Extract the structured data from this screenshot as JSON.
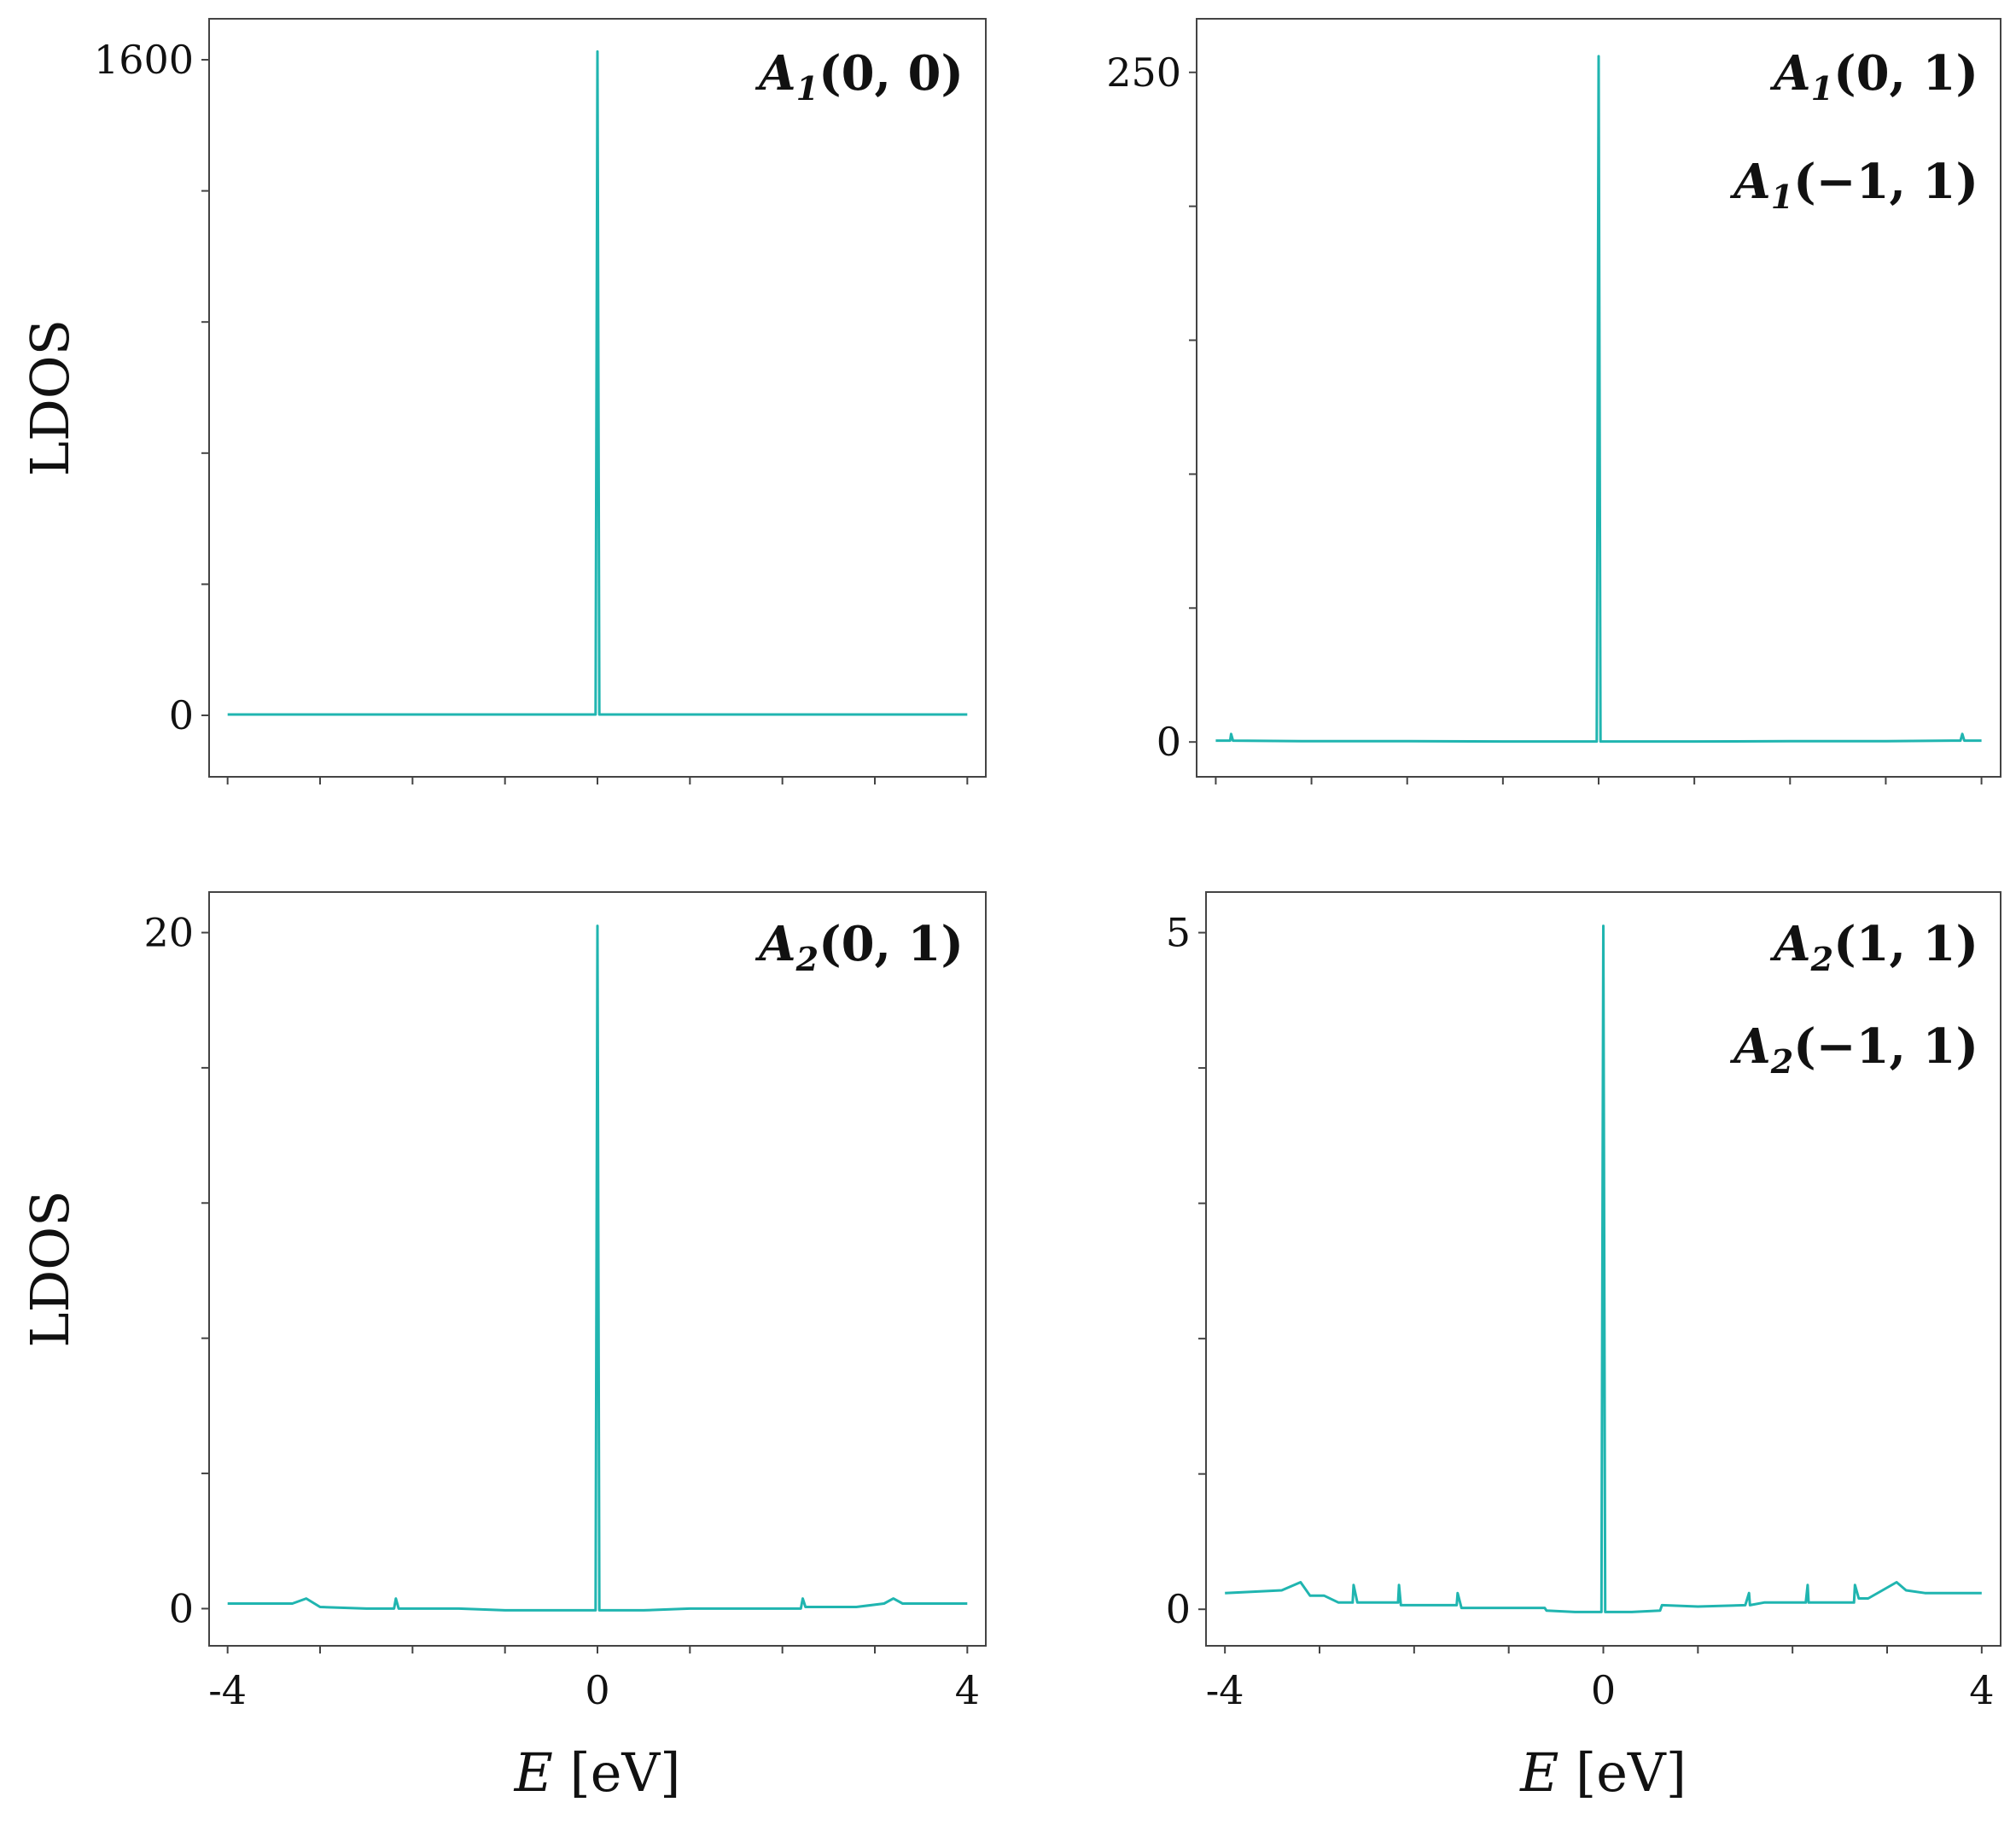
{
  "chart_data": [
    {
      "type": "line",
      "panel": "top-left",
      "xlabel": "",
      "ylabel": "LDOS",
      "xlim": [
        -4.2,
        4.2
      ],
      "ylim": [
        -150,
        1700
      ],
      "yticks": [
        0,
        1600
      ],
      "xtick_labels": [],
      "annotations": [
        "A1(0,0)"
      ],
      "series": [
        {
          "x": [
            -4,
            -3,
            -2,
            -1,
            -0.02,
            0,
            0.02,
            1,
            2,
            3,
            4
          ],
          "y": [
            2,
            2,
            2,
            2,
            2,
            1620,
            2,
            2,
            2,
            2,
            2
          ]
        }
      ]
    },
    {
      "type": "line",
      "panel": "top-right",
      "xlabel": "",
      "ylabel": "",
      "xlim": [
        -4.2,
        4.2
      ],
      "ylim": [
        -13,
        270
      ],
      "yticks": [
        0,
        250
      ],
      "xtick_labels": [],
      "annotations": [
        "A1(0,1)",
        "A1(−1,1)"
      ],
      "series": [
        {
          "x": [
            -4,
            -3.85,
            -3.84,
            -3.82,
            -3,
            -2,
            -1,
            -0.02,
            0,
            0.02,
            1,
            2,
            3,
            3.78,
            3.8,
            3.82,
            4
          ],
          "y": [
            0.5,
            0.5,
            3,
            0.5,
            0.3,
            0.3,
            0.2,
            0.2,
            256,
            0.2,
            0.2,
            0.3,
            0.3,
            0.5,
            3,
            0.5,
            0.5
          ]
        }
      ]
    },
    {
      "type": "line",
      "panel": "bottom-left",
      "xlabel": "E [eV]",
      "ylabel": "LDOS",
      "xlim": [
        -4.2,
        4.2
      ],
      "ylim": [
        -1.1,
        21.2
      ],
      "yticks": [
        0,
        20
      ],
      "xtick_labels": [
        "-4",
        "0",
        "4"
      ],
      "annotations": [
        "A2(0,1)"
      ],
      "series": [
        {
          "x": [
            -4,
            -3.3,
            -3.15,
            -3.0,
            -2.5,
            -2.2,
            -2.18,
            -2.15,
            -1.5,
            -1.0,
            -0.5,
            -0.02,
            0,
            0.02,
            0.5,
            1.0,
            1.5,
            2.2,
            2.22,
            2.25,
            2.8,
            3.1,
            3.2,
            3.3,
            4
          ],
          "y": [
            0.15,
            0.15,
            0.3,
            0.05,
            0.0,
            0.0,
            0.3,
            0.0,
            0.0,
            -0.05,
            -0.05,
            -0.05,
            20.2,
            -0.05,
            -0.05,
            0.0,
            0.0,
            0.0,
            0.3,
            0.05,
            0.05,
            0.15,
            0.3,
            0.15,
            0.15
          ]
        }
      ]
    },
    {
      "type": "line",
      "panel": "bottom-right",
      "xlabel": "E [eV]",
      "ylabel": "",
      "xlim": [
        -4.2,
        4.2
      ],
      "ylim": [
        -0.27,
        5.3
      ],
      "yticks": [
        0,
        5
      ],
      "xtick_labels": [
        "-4",
        "0",
        "4"
      ],
      "annotations": [
        "A2(1,1)",
        "A2(−1,1)"
      ],
      "series": [
        {
          "x": [
            -4,
            -3.4,
            -3.2,
            -3.1,
            -2.95,
            -2.8,
            -2.7,
            -2.65,
            -2.64,
            -2.6,
            -2.3,
            -2.17,
            -2.16,
            -2.14,
            -1.7,
            -1.55,
            -1.54,
            -1.5,
            -1.0,
            -0.62,
            -0.6,
            -0.3,
            -0.02,
            0,
            0.02,
            0.3,
            0.6,
            0.62,
            1.0,
            1.5,
            1.54,
            1.55,
            1.7,
            2.14,
            2.16,
            2.17,
            2.5,
            2.65,
            2.66,
            2.7,
            2.8,
            2.95,
            3.1,
            3.2,
            3.4,
            4
          ],
          "y": [
            0.12,
            0.14,
            0.2,
            0.1,
            0.1,
            0.05,
            0.05,
            0.05,
            0.18,
            0.05,
            0.05,
            0.05,
            0.18,
            0.03,
            0.03,
            0.03,
            0.12,
            0.01,
            0.01,
            0.01,
            -0.01,
            -0.02,
            -0.02,
            5.05,
            -0.02,
            -0.02,
            -0.01,
            0.03,
            0.02,
            0.03,
            0.12,
            0.03,
            0.05,
            0.05,
            0.18,
            0.05,
            0.05,
            0.05,
            0.18,
            0.08,
            0.08,
            0.14,
            0.2,
            0.14,
            0.12,
            0.12
          ]
        }
      ]
    }
  ]
}
